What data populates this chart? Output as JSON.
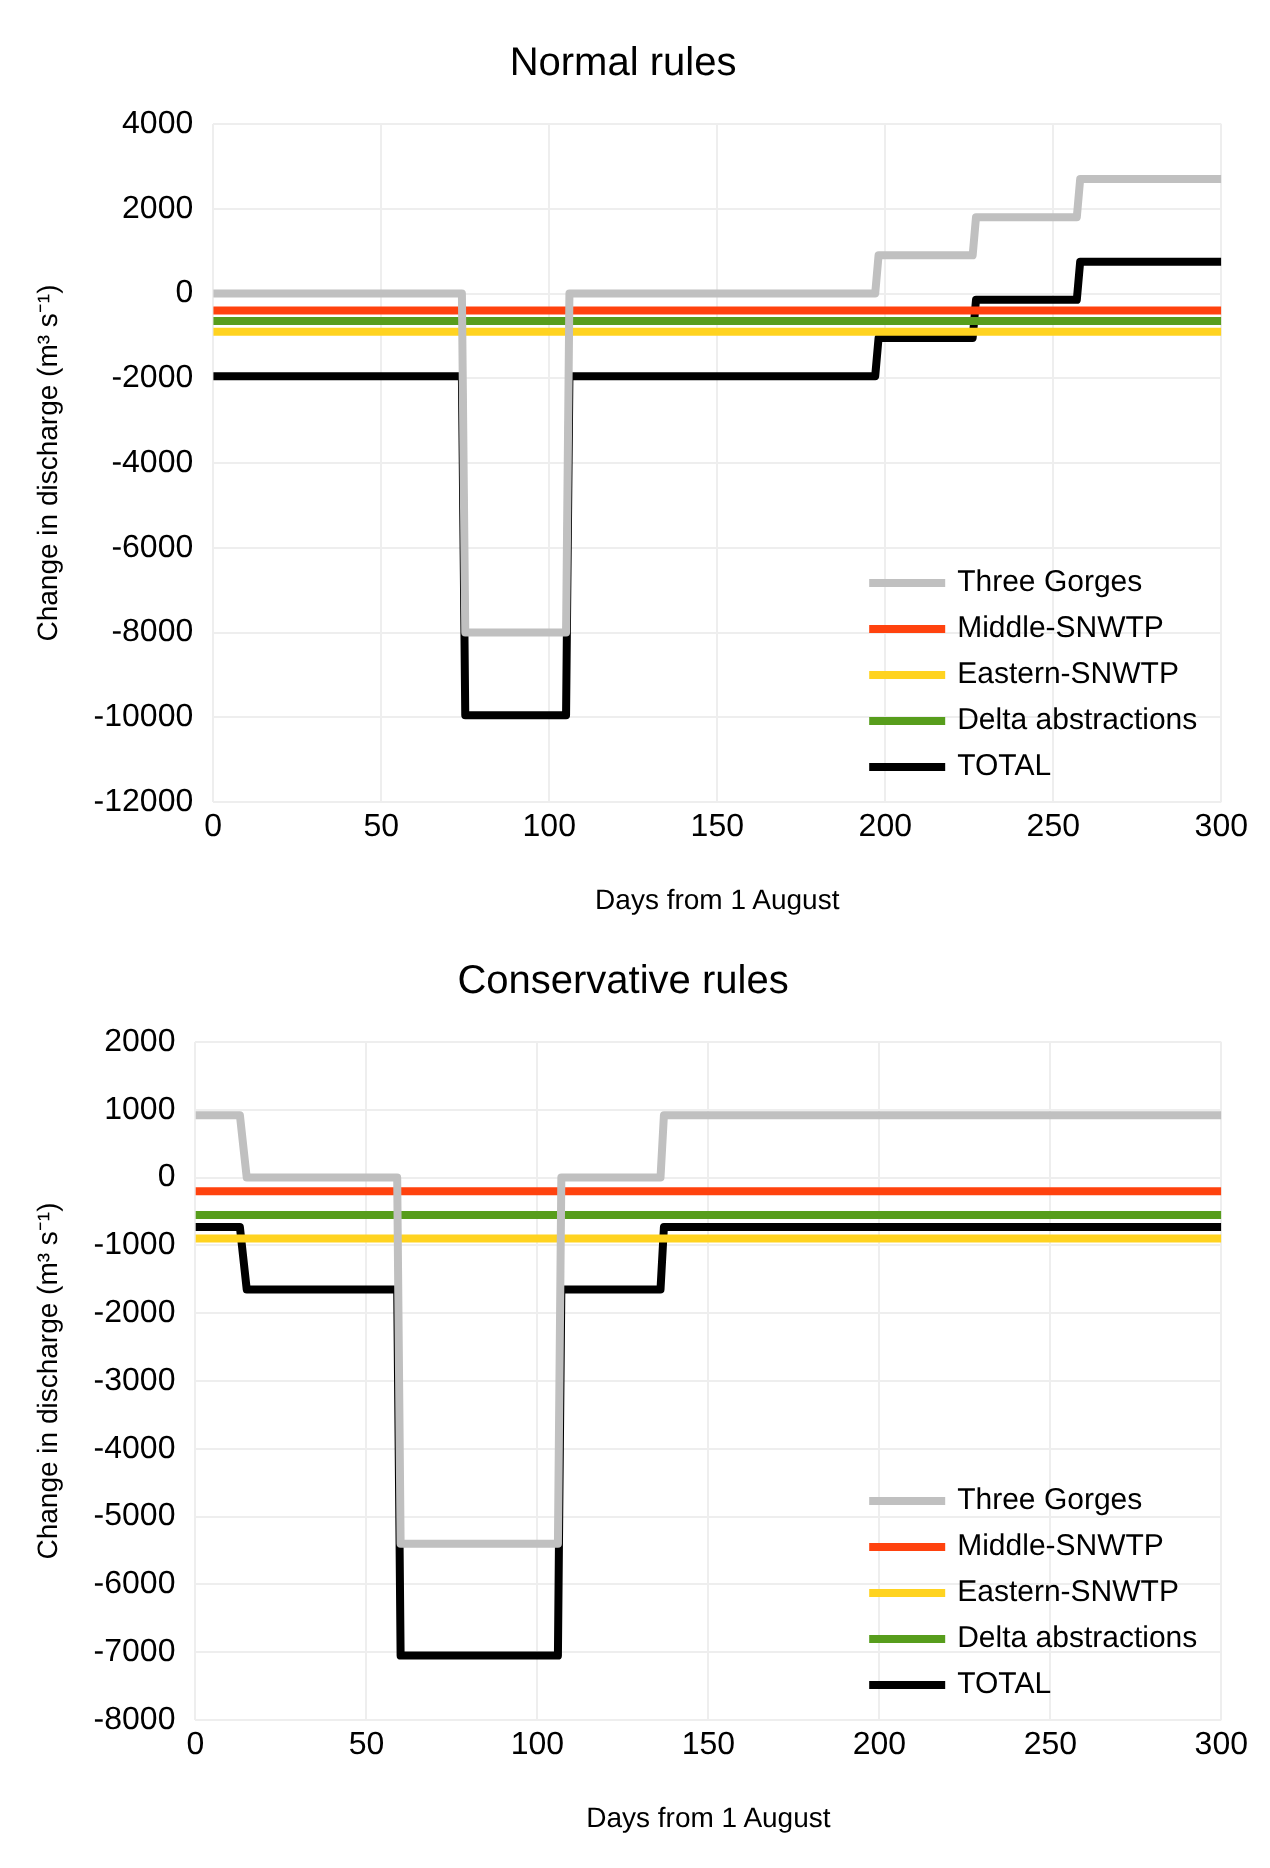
{
  "chart_data": [
    {
      "type": "line",
      "title": "Normal rules",
      "xlabel": "Days from 1 August",
      "ylabel": "Change in discharge (m³ s⁻¹)",
      "xlim": [
        0,
        300
      ],
      "xticks": [
        0,
        50,
        100,
        150,
        200,
        250,
        300
      ],
      "ylim": [
        -12000,
        4000
      ],
      "yticks": [
        -12000,
        -10000,
        -8000,
        -6000,
        -4000,
        -2000,
        0,
        2000,
        4000
      ],
      "grid": true,
      "legend": "bottom right",
      "line_style": "solid",
      "marker": "none",
      "series": [
        {
          "name": "Three Gorges",
          "color": "#c0c0c0",
          "x": [
            0,
            74,
            75,
            105,
            106,
            197,
            198,
            226,
            227,
            257,
            258,
            300
          ],
          "values": [
            0,
            0,
            -8000,
            -8000,
            0,
            0,
            900,
            900,
            1800,
            1800,
            2700,
            2700
          ]
        },
        {
          "name": "Middle-SNWTP",
          "color": "#ff420e",
          "x": [
            0,
            300
          ],
          "values": [
            -400,
            -400
          ]
        },
        {
          "name": "Eastern-SNWTP",
          "color": "#ffd320",
          "x": [
            0,
            300
          ],
          "values": [
            -900,
            -900
          ]
        },
        {
          "name": "Delta abstractions",
          "color": "#579d1c",
          "x": [
            0,
            300
          ],
          "values": [
            -650,
            -650
          ]
        },
        {
          "name": "TOTAL",
          "color": "#000000",
          "x": [
            0,
            74,
            75,
            105,
            106,
            197,
            198,
            226,
            227,
            257,
            258,
            300
          ],
          "values": [
            -1950,
            -1950,
            -9950,
            -9950,
            -1950,
            -1950,
            -1050,
            -1050,
            -150,
            -150,
            750,
            750
          ]
        }
      ]
    },
    {
      "type": "line",
      "title": "Conservative rules",
      "xlabel": "Days from 1 August",
      "ylabel": "Change in discharge (m³ s⁻¹)",
      "xlim": [
        0,
        300
      ],
      "xticks": [
        0,
        50,
        100,
        150,
        200,
        250,
        300
      ],
      "ylim": [
        -8000,
        2000
      ],
      "yticks": [
        -8000,
        -7000,
        -6000,
        -5000,
        -4000,
        -3000,
        -2000,
        -1000,
        0,
        1000,
        2000
      ],
      "grid": true,
      "legend": "bottom right",
      "line_style": "solid",
      "marker": "none",
      "series": [
        {
          "name": "Three Gorges",
          "color": "#c0c0c0",
          "x": [
            0,
            13,
            15,
            59,
            60,
            106,
            107,
            136,
            137,
            300
          ],
          "values": [
            920,
            920,
            0,
            0,
            -5400,
            -5400,
            0,
            0,
            920,
            920
          ]
        },
        {
          "name": "Middle-SNWTP",
          "color": "#ff420e",
          "x": [
            0,
            300
          ],
          "values": [
            -200,
            -200
          ]
        },
        {
          "name": "Eastern-SNWTP",
          "color": "#ffd320",
          "x": [
            0,
            300
          ],
          "values": [
            -900,
            -900
          ]
        },
        {
          "name": "Delta abstractions",
          "color": "#579d1c",
          "x": [
            0,
            300
          ],
          "values": [
            -550,
            -550
          ]
        },
        {
          "name": "TOTAL",
          "color": "#000000",
          "x": [
            0,
            13,
            15,
            59,
            60,
            106,
            107,
            136,
            137,
            300
          ],
          "values": [
            -730,
            -730,
            -1650,
            -1650,
            -7050,
            -7050,
            -1650,
            -1650,
            -730,
            -730
          ]
        }
      ]
    }
  ]
}
